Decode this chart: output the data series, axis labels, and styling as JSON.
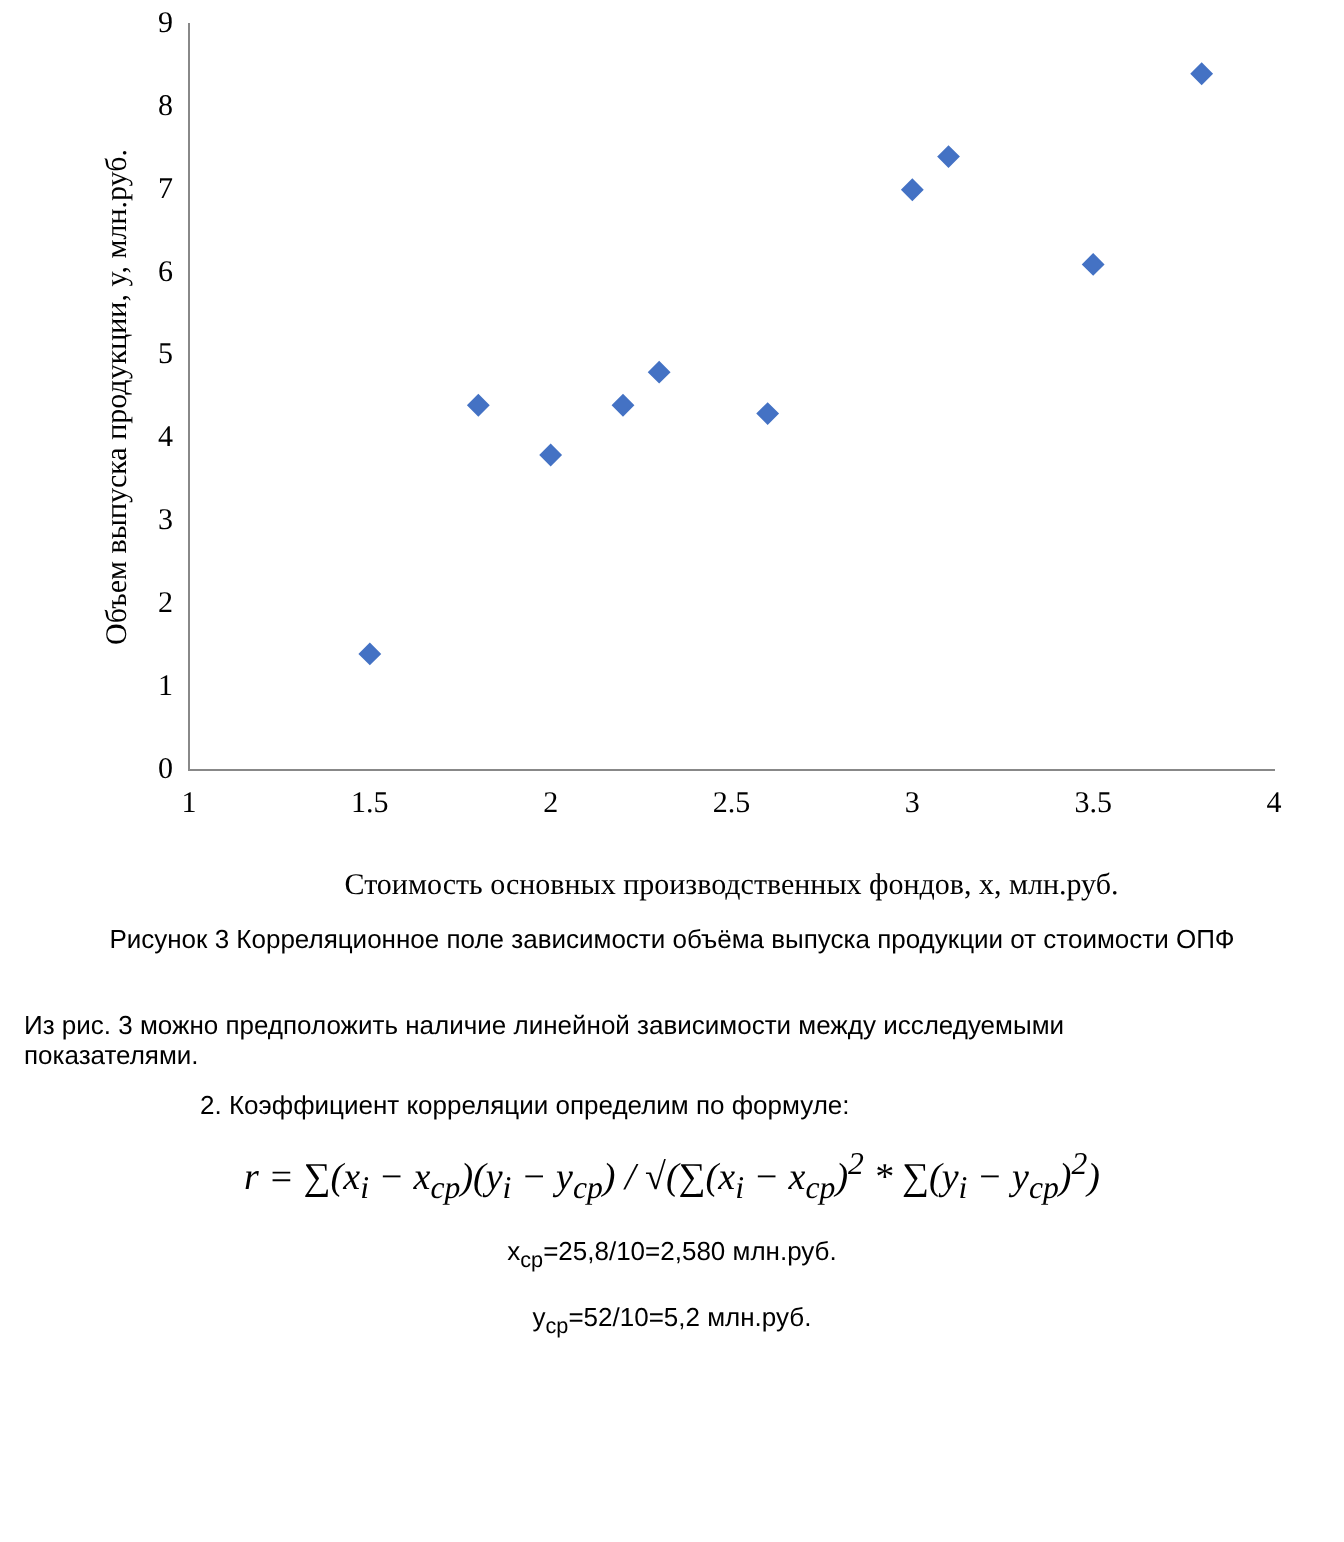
{
  "chart_data": {
    "type": "scatter",
    "xlabel": "Стоимость основных производственных фондов, x, млн.руб.",
    "ylabel": "Объем выпуска продукции, y, млн.руб.",
    "x": [
      1.5,
      1.8,
      2,
      2.2,
      2.3,
      2.6,
      3,
      3.1,
      3.5,
      3.8
    ],
    "series": [
      {
        "color": "#4472c4",
        "values": [
          1.4,
          4.4,
          3.8,
          4.4,
          4.8,
          4.3,
          7,
          7.4,
          6.1,
          8.4
        ]
      }
    ],
    "xlim": [
      1,
      4
    ],
    "xticks": [
      1,
      1.5,
      2,
      2.5,
      3,
      3.5,
      4
    ],
    "ylim": [
      0,
      9
    ],
    "yticks": [
      0,
      1,
      2,
      3,
      4,
      5,
      6,
      7,
      8,
      9
    ],
    "grid": false,
    "legend": false,
    "marker": "diamond",
    "annotations": [
      "Рисунок 3 Корреляционное поле зависимости объёма выпуска продукции от стоимости ОПФ",
      "Из рис. 3 можно предположить наличие линейной зависимости между исследуемыми показателями.",
      "2. Коэффициент корреляции определим по формуле:",
      "r = ∑(x$_{i}$ − x$_{cp}$)(y$_{i}$ − y$_{cp}$) / √(∑(x$_{i}$ − x$_{cp}$)$^{2}$ * ∑(y$_{i}$ − y$_{cp}$)$^{2}$)",
      "x$_{ср}$=25,8/10=2,580 млн.руб.",
      "y$_{ср}$=52/10=5,2 млн.руб."
    ]
  }
}
